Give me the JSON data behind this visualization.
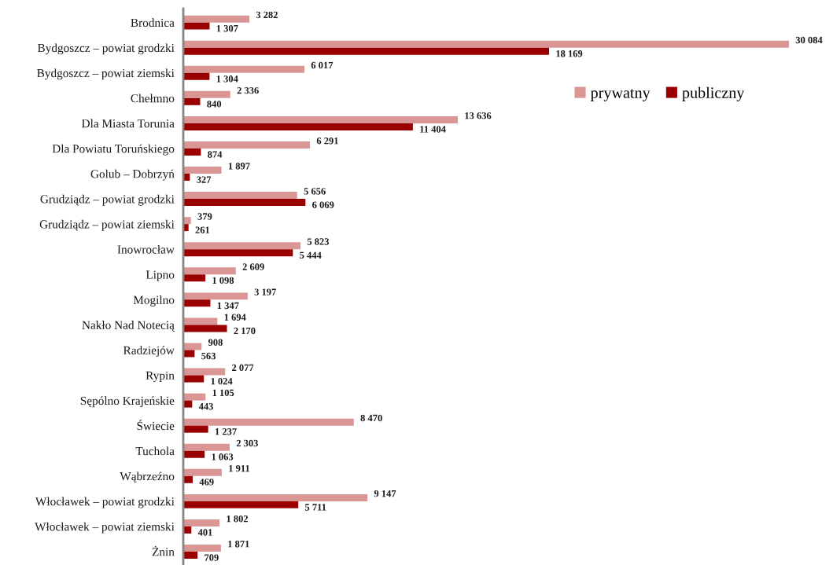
{
  "chart_data": {
    "type": "bar",
    "orientation": "horizontal",
    "categories": [
      "Brodnica",
      "Bydgoszcz – powiat grodzki",
      "Bydgoszcz – powiat ziemski",
      "Chełmno",
      "Dla Miasta Torunia",
      "Dla Powiatu Toruńskiego",
      "Golub – Dobrzyń",
      "Grudziądz – powiat grodzki",
      "Grudziądz – powiat ziemski",
      "Inowrocław",
      "Lipno",
      "Mogilno",
      "Nakło Nad Notecią",
      "Radziejów",
      "Rypin",
      "Sępólno Krajeńskie",
      "Świecie",
      "Tuchola",
      "Wąbrzeźno",
      "Włocławek – powiat grodzki",
      "Włocławek – powiat ziemski",
      "Żnin"
    ],
    "series": [
      {
        "name": "prywatny",
        "color": "#d99694",
        "values": [
          3282,
          30084,
          6017,
          2336,
          13636,
          6291,
          1897,
          5656,
          379,
          5823,
          2609,
          3197,
          1694,
          908,
          2077,
          1105,
          8470,
          2303,
          1911,
          9147,
          1802,
          1871
        ],
        "value_labels": [
          "3 282",
          "30 084",
          "6 017",
          "2 336",
          "13 636",
          "6 291",
          "1 897",
          "5 656",
          "379",
          "5 823",
          "2 609",
          "3 197",
          "1 694",
          "908",
          "2 077",
          "1 105",
          "8 470",
          "2 303",
          "1 911",
          "9 147",
          "1 802",
          "1 871"
        ]
      },
      {
        "name": "publiczny",
        "color": "#9b0000",
        "values": [
          1307,
          18169,
          1304,
          840,
          11404,
          874,
          327,
          6069,
          261,
          5444,
          1098,
          1347,
          2170,
          563,
          1024,
          443,
          1237,
          1063,
          469,
          5711,
          401,
          709
        ],
        "value_labels": [
          "1 307",
          "18 169",
          "1 304",
          "840",
          "11 404",
          "874",
          "327",
          "6 069",
          "261",
          "5 444",
          "1 098",
          "1 347",
          "2 170",
          "563",
          "1 024",
          "443",
          "1 237",
          "1 063",
          "469",
          "5 711",
          "401",
          "709"
        ]
      }
    ],
    "legend": "top right",
    "tick_labels": "y"
  }
}
